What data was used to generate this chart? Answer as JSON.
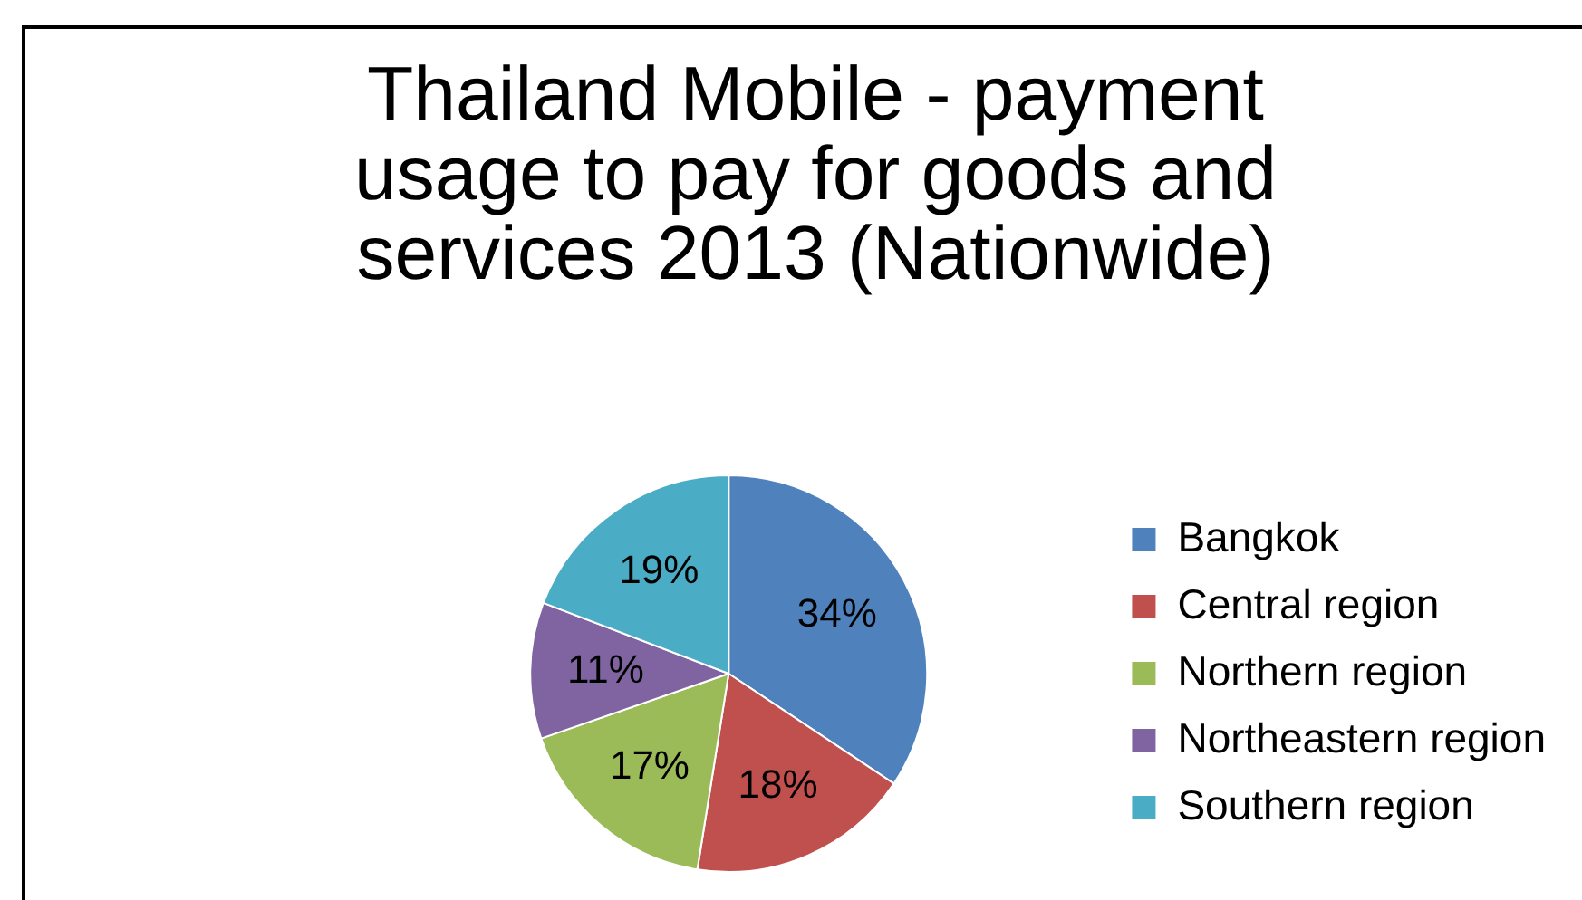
{
  "chart_data": {
    "type": "pie",
    "title": "Thailand Mobile - payment usage to pay for goods and services 2013 (Nationwide)",
    "categories": [
      "Bangkok",
      "Central region",
      "Northern region",
      "Northeastern region",
      "Southern region"
    ],
    "values": [
      34,
      18,
      17,
      11,
      19
    ],
    "colors": [
      "#4f81bd",
      "#c0504d",
      "#9bbb59",
      "#8064a2",
      "#4bacc6"
    ],
    "value_labels": [
      "34%",
      "18%",
      "17%",
      "11%",
      "19%"
    ],
    "legend": "right"
  }
}
